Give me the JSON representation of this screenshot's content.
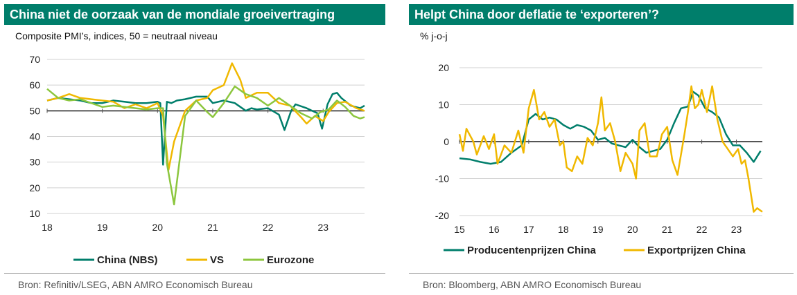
{
  "panels": [
    {
      "title": "China niet de oorzaak van de mondiale groeivertraging",
      "subtitle": "Composite PMI’s, indices, 50 = neutraal niveau",
      "source": "Bron:  Refinitiv/LSEG, ABN AMRO Economisch Bureau"
    },
    {
      "title": "Helpt China door deflatie te ‘exporteren’?",
      "subtitle": "% j-o-j",
      "source": "Bron:  Bloomberg, ABN AMRO Economisch Bureau"
    }
  ],
  "chart_data": [
    {
      "type": "line",
      "title": "China niet de oorzaak van de mondiale groeivertraging",
      "ylabel": "Composite PMI’s, indices, 50 = neutraal niveau",
      "xlim": [
        2018,
        2023.75
      ],
      "ylim": [
        10,
        70
      ],
      "yticks": [
        10,
        20,
        30,
        40,
        50,
        60,
        70
      ],
      "xticks": [
        18,
        19,
        20,
        21,
        22,
        23
      ],
      "reference_line": 50,
      "legend_position": "bottom",
      "series": [
        {
          "name": "China (NBS)",
          "color": "#007e6b",
          "x": [
            2018.0,
            2018.2,
            2018.4,
            2018.6,
            2018.8,
            2019.0,
            2019.2,
            2019.4,
            2019.6,
            2019.8,
            2020.0,
            2020.05,
            2020.1,
            2020.17,
            2020.25,
            2020.35,
            2020.5,
            2020.7,
            2020.9,
            2021.0,
            2021.2,
            2021.4,
            2021.6,
            2021.7,
            2021.8,
            2022.0,
            2022.2,
            2022.3,
            2022.42,
            2022.5,
            2022.7,
            2022.9,
            2022.98,
            2023.08,
            2023.17,
            2023.25,
            2023.33,
            2023.5,
            2023.67,
            2023.75
          ],
          "y": [
            54,
            55,
            54.5,
            54,
            53,
            53,
            54,
            53.5,
            53,
            53,
            53.5,
            53,
            29,
            53.5,
            53,
            54,
            54.5,
            55.5,
            55.5,
            53,
            54,
            53,
            50,
            51,
            50.5,
            51,
            48.5,
            42.5,
            50,
            52.5,
            51,
            49,
            43,
            52.5,
            56.5,
            57,
            55,
            52,
            51,
            52
          ]
        },
        {
          "name": "VS",
          "color": "#f0b800",
          "x": [
            2018.0,
            2018.2,
            2018.4,
            2018.6,
            2018.8,
            2019.0,
            2019.2,
            2019.4,
            2019.6,
            2019.8,
            2020.0,
            2020.1,
            2020.2,
            2020.3,
            2020.5,
            2020.7,
            2020.9,
            2021.0,
            2021.2,
            2021.35,
            2021.5,
            2021.6,
            2021.8,
            2022.0,
            2022.2,
            2022.4,
            2022.6,
            2022.7,
            2022.85,
            2023.0,
            2023.1,
            2023.25,
            2023.4,
            2023.6,
            2023.75
          ],
          "y": [
            54,
            55,
            56.5,
            55,
            54.5,
            54,
            53.5,
            51,
            52.5,
            51,
            53,
            48,
            27,
            38,
            50,
            54,
            55,
            58,
            60,
            68.5,
            62,
            55,
            57,
            57,
            53,
            52,
            47.5,
            45,
            48,
            46,
            49.5,
            53,
            53.5,
            51,
            50
          ]
        },
        {
          "name": "Eurozone",
          "color": "#8cc63e",
          "x": [
            2018.0,
            2018.2,
            2018.4,
            2018.6,
            2018.8,
            2019.0,
            2019.2,
            2019.4,
            2019.6,
            2019.8,
            2020.0,
            2020.1,
            2020.17,
            2020.3,
            2020.5,
            2020.7,
            2020.9,
            2021.0,
            2021.2,
            2021.4,
            2021.6,
            2021.8,
            2022.0,
            2022.2,
            2022.4,
            2022.6,
            2022.8,
            2022.95,
            2023.1,
            2023.25,
            2023.4,
            2023.55,
            2023.67,
            2023.75
          ],
          "y": [
            58.5,
            55,
            54,
            54.5,
            53,
            51.5,
            52,
            51.5,
            51,
            50.5,
            51,
            51,
            29.5,
            13.5,
            48,
            54,
            49.5,
            47.5,
            53,
            59.5,
            56.5,
            55,
            52,
            55,
            52,
            49,
            47,
            49.5,
            50.5,
            54,
            51.5,
            48,
            47,
            47.5
          ]
        }
      ]
    },
    {
      "type": "line",
      "title": "Helpt China door deflatie te ‘exporteren’?",
      "ylabel": "% j-o-j",
      "xlim": [
        2015,
        2023.75
      ],
      "ylim": [
        -20,
        20
      ],
      "yticks": [
        -20,
        -10,
        0,
        10,
        20
      ],
      "xticks": [
        15,
        16,
        17,
        18,
        19,
        20,
        21,
        22,
        23
      ],
      "reference_line": 0,
      "legend_position": "bottom",
      "series": [
        {
          "name": "Producentenprijzen China",
          "color": "#007e6b",
          "x": [
            2015.0,
            2015.3,
            2015.6,
            2015.9,
            2016.2,
            2016.5,
            2016.8,
            2017.0,
            2017.2,
            2017.4,
            2017.6,
            2017.8,
            2018.0,
            2018.2,
            2018.4,
            2018.6,
            2018.8,
            2019.0,
            2019.2,
            2019.4,
            2019.6,
            2019.8,
            2020.0,
            2020.2,
            2020.4,
            2020.6,
            2020.8,
            2021.0,
            2021.2,
            2021.4,
            2021.6,
            2021.75,
            2021.9,
            2022.1,
            2022.3,
            2022.5,
            2022.7,
            2022.9,
            2023.1,
            2023.3,
            2023.5,
            2023.7
          ],
          "y": [
            -4.5,
            -4.8,
            -5.5,
            -6,
            -5.5,
            -3,
            -1,
            6,
            7.5,
            6,
            6.5,
            6,
            4.5,
            3.5,
            4.5,
            4,
            3,
            0.5,
            1,
            -0.5,
            -1,
            -1.5,
            0.5,
            -1.5,
            -3,
            -2.5,
            -2,
            0.5,
            5,
            9,
            9.5,
            13.5,
            12.5,
            9,
            8,
            6.5,
            2,
            -1,
            -1,
            -3,
            -5.5,
            -2.5
          ]
        },
        {
          "name": "Exportprijzen China",
          "color": "#f0b800",
          "x": [
            2015.0,
            2015.1,
            2015.2,
            2015.4,
            2015.5,
            2015.7,
            2015.85,
            2016.0,
            2016.1,
            2016.3,
            2016.5,
            2016.7,
            2016.85,
            2017.0,
            2017.15,
            2017.3,
            2017.45,
            2017.6,
            2017.75,
            2017.9,
            2018.0,
            2018.1,
            2018.25,
            2018.4,
            2018.55,
            2018.7,
            2018.85,
            2019.0,
            2019.1,
            2019.2,
            2019.35,
            2019.5,
            2019.65,
            2019.8,
            2020.0,
            2020.1,
            2020.2,
            2020.35,
            2020.5,
            2020.7,
            2020.85,
            2021.0,
            2021.15,
            2021.3,
            2021.5,
            2021.6,
            2021.7,
            2021.8,
            2021.9,
            2022.0,
            2022.15,
            2022.3,
            2022.45,
            2022.6,
            2022.75,
            2022.9,
            2023.05,
            2023.15,
            2023.25,
            2023.35,
            2023.5,
            2023.6,
            2023.75
          ],
          "y": [
            2,
            -2.5,
            3.5,
            0,
            -3.5,
            1.5,
            -2,
            2,
            -6,
            -1,
            -3,
            3,
            -3,
            9,
            14,
            6,
            8,
            4,
            6,
            -1,
            0,
            -7,
            -8,
            -4,
            -6,
            1,
            -1,
            5,
            12,
            3,
            5,
            0,
            -8,
            -3,
            -6,
            -10,
            3,
            5,
            -4,
            -4,
            2,
            4,
            -5,
            -9,
            2,
            8,
            15,
            9,
            10,
            14,
            8,
            15,
            6,
            0,
            -2,
            -4,
            -2,
            -6,
            -5,
            -10,
            -19,
            -18,
            -19
          ]
        }
      ]
    }
  ]
}
